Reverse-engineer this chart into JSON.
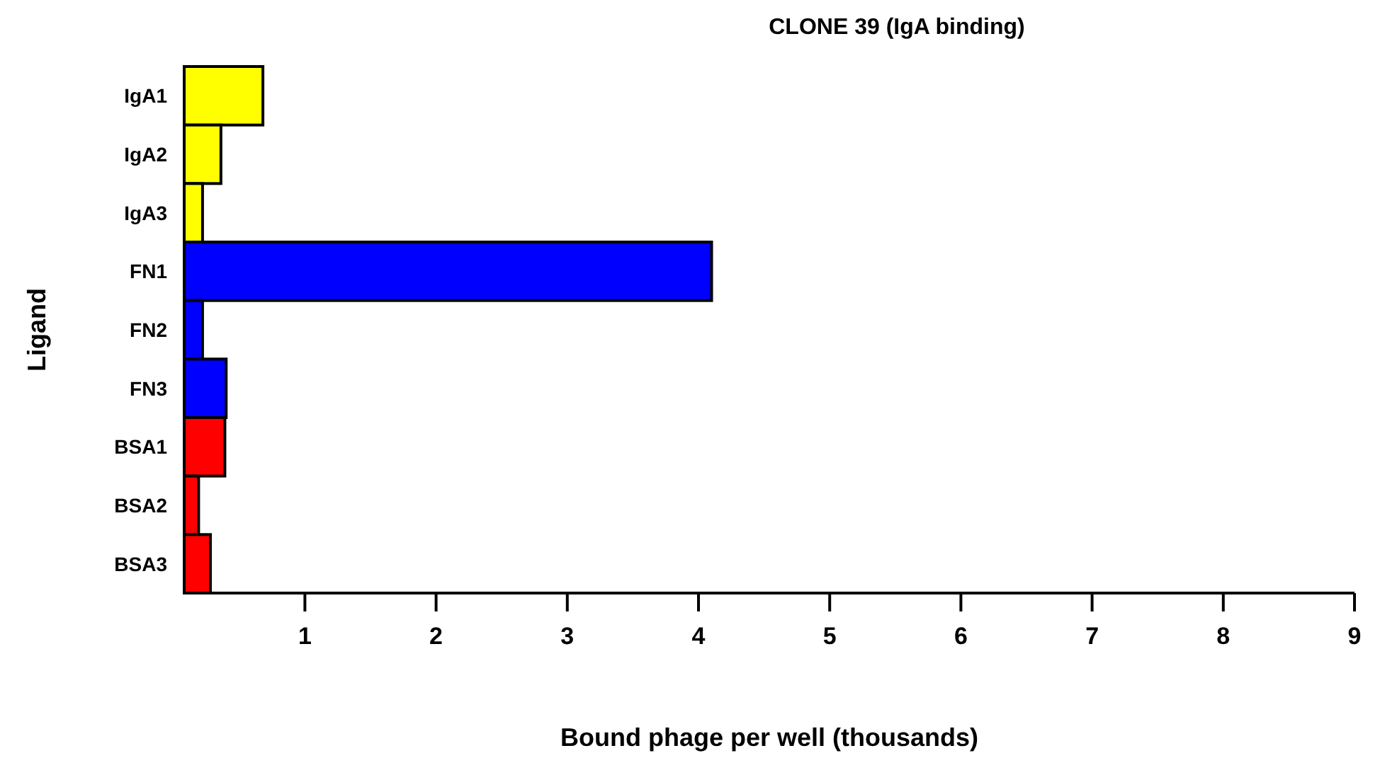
{
  "chart_data": {
    "type": "bar",
    "orientation": "horizontal",
    "title": "CLONE 39 (IgA binding)",
    "xlabel": "Bound phage per well (thousands)",
    "ylabel": "Ligand",
    "categories": [
      "IgA1",
      "IgA2",
      "IgA3",
      "FN1",
      "FN2",
      "FN3",
      "BSA1",
      "BSA2",
      "BSA3"
    ],
    "values": [
      0.68,
      0.36,
      0.22,
      4.1,
      0.22,
      0.4,
      0.39,
      0.19,
      0.28
    ],
    "colors": [
      "#ffff00",
      "#ffff00",
      "#ffff00",
      "#0000ff",
      "#0000ff",
      "#0000ff",
      "#ff0000",
      "#ff0000",
      "#ff0000"
    ],
    "xlim": [
      0.08,
      9
    ],
    "xticks": [
      1,
      2,
      3,
      4,
      5,
      6,
      7,
      8,
      9
    ],
    "grid": false
  }
}
